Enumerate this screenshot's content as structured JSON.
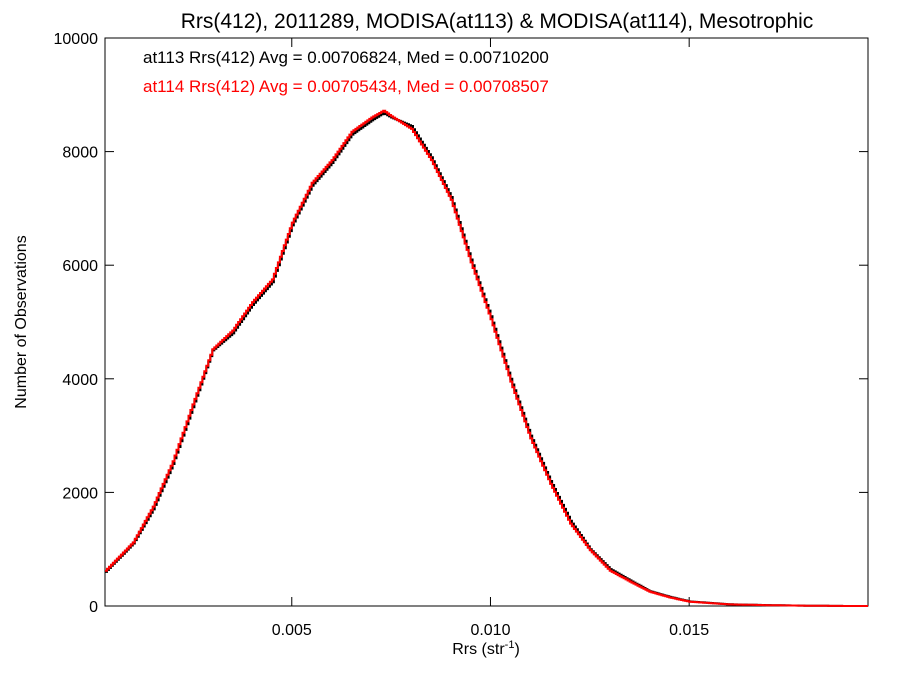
{
  "chart_data": {
    "type": "line",
    "title": "Rrs(412), 2011289, MODISA(at113) & MODISA(at114), Mesotrophic",
    "xlabel_main": "Rrs (str",
    "xlabel_sup": "-1",
    "xlabel_end": ")",
    "ylabel": "Number of Observations",
    "xlim": [
      0.0003,
      0.0195
    ],
    "ylim": [
      0,
      10000
    ],
    "x_ticks": [
      0.005,
      0.01,
      0.015
    ],
    "x_tick_labels": [
      "0.005",
      "0.010",
      "0.015"
    ],
    "y_ticks": [
      0,
      2000,
      4000,
      6000,
      8000,
      10000
    ],
    "y_tick_labels": [
      "0",
      "2000",
      "4000",
      "6000",
      "8000",
      "10000"
    ],
    "grid": false,
    "legend": "top-left",
    "annotations": [
      {
        "text": "at113 Rrs(412) Avg = 0.00706824, Med = 0.00710200",
        "color": "#000000"
      },
      {
        "text": "at114 Rrs(412) Avg = 0.00705434, Med = 0.00708507",
        "color": "#ff0000"
      }
    ],
    "series": [
      {
        "color": "#000000",
        "style": "step",
        "x": [
          0.0003,
          0.001,
          0.0015,
          0.002,
          0.0025,
          0.003,
          0.0035,
          0.004,
          0.0045,
          0.005,
          0.0055,
          0.006,
          0.0065,
          0.007,
          0.0073,
          0.0075,
          0.008,
          0.0085,
          0.009,
          0.0095,
          0.01,
          0.0105,
          0.011,
          0.0115,
          0.012,
          0.0125,
          0.013,
          0.0135,
          0.014,
          0.0145,
          0.015,
          0.016,
          0.017,
          0.018,
          0.019,
          0.0195
        ],
        "y": [
          600,
          1100,
          1700,
          2500,
          3500,
          4500,
          4800,
          5300,
          5700,
          6700,
          7400,
          7800,
          8300,
          8550,
          8680,
          8600,
          8450,
          7900,
          7200,
          6100,
          5100,
          4000,
          3000,
          2200,
          1500,
          1000,
          650,
          450,
          260,
          160,
          80,
          30,
          15,
          5,
          0,
          0
        ]
      },
      {
        "color": "#ff0000",
        "style": "step",
        "x": [
          0.0003,
          0.001,
          0.0015,
          0.002,
          0.0025,
          0.003,
          0.0035,
          0.004,
          0.0045,
          0.005,
          0.0055,
          0.006,
          0.0065,
          0.007,
          0.0073,
          0.0075,
          0.008,
          0.0085,
          0.009,
          0.0095,
          0.01,
          0.0105,
          0.011,
          0.0115,
          0.012,
          0.0125,
          0.013,
          0.0135,
          0.014,
          0.0145,
          0.015,
          0.016,
          0.017,
          0.018,
          0.019,
          0.0195
        ],
        "y": [
          620,
          1120,
          1750,
          2550,
          3550,
          4520,
          4850,
          5350,
          5750,
          6750,
          7450,
          7850,
          8350,
          8600,
          8720,
          8620,
          8400,
          7850,
          7150,
          6050,
          5050,
          3950,
          2950,
          2150,
          1450,
          980,
          620,
          430,
          250,
          150,
          75,
          28,
          14,
          5,
          0,
          0
        ]
      }
    ]
  }
}
